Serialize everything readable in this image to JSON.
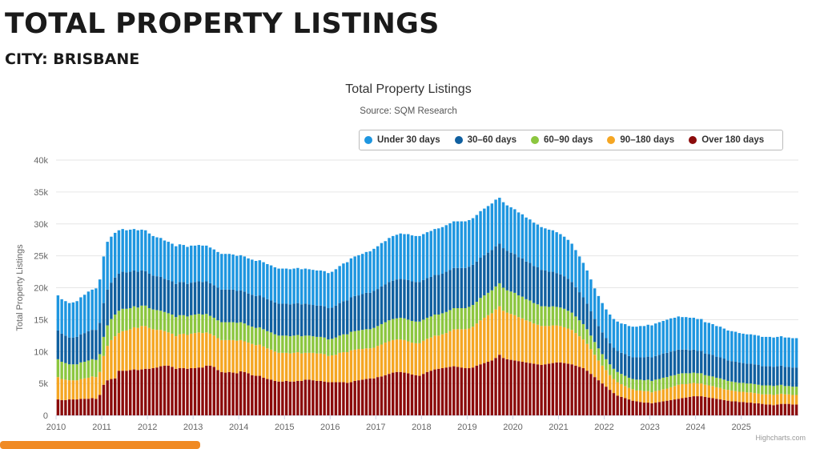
{
  "page": {
    "title": "TOTAL PROPERTY LISTINGS",
    "city": "CITY: BRISBANE"
  },
  "credits": "Highcharts.com",
  "chart_data": {
    "type": "bar",
    "stacked": true,
    "title": "Total Property Listings",
    "subtitle": "Source: SQM Research",
    "ylabel": "Total Property Listings",
    "ylim": [
      0,
      40000
    ],
    "y_ticks": [
      "0",
      "5k",
      "10k",
      "15k",
      "20k",
      "25k",
      "30k",
      "35k",
      "40k"
    ],
    "x_ticks": [
      "2010",
      "2011",
      "2012",
      "2013",
      "2014",
      "2015",
      "2016",
      "2017",
      "2018",
      "2019",
      "2020",
      "2021",
      "2022",
      "2023",
      "2024",
      "2025"
    ],
    "x_start": "2010-01",
    "frequency": "monthly",
    "grid": true,
    "legend_position": "top-right",
    "series": [
      {
        "name": "Over 180 days",
        "color": "#8b0b0b",
        "values": [
          2500,
          2400,
          2400,
          2500,
          2500,
          2500,
          2600,
          2600,
          2600,
          2700,
          2600,
          3200,
          4800,
          5500,
          5700,
          5800,
          7000,
          7000,
          7000,
          7100,
          7200,
          7100,
          7200,
          7300,
          7300,
          7400,
          7500,
          7700,
          7800,
          7800,
          7600,
          7300,
          7400,
          7400,
          7300,
          7400,
          7400,
          7500,
          7500,
          7800,
          7800,
          7600,
          7100,
          6800,
          6700,
          6800,
          6700,
          6600,
          6900,
          6800,
          6600,
          6300,
          6200,
          6200,
          5900,
          5700,
          5600,
          5400,
          5300,
          5300,
          5400,
          5300,
          5300,
          5400,
          5400,
          5600,
          5600,
          5500,
          5400,
          5400,
          5300,
          5200,
          5200,
          5200,
          5200,
          5200,
          5100,
          5200,
          5400,
          5500,
          5600,
          5700,
          5800,
          5800,
          6000,
          6100,
          6300,
          6500,
          6700,
          6800,
          6800,
          6700,
          6600,
          6400,
          6300,
          6200,
          6500,
          6800,
          7000,
          7200,
          7300,
          7400,
          7500,
          7600,
          7700,
          7600,
          7500,
          7400,
          7400,
          7500,
          7800,
          8000,
          8200,
          8400,
          8600,
          9000,
          9500,
          9000,
          8800,
          8700,
          8600,
          8500,
          8400,
          8300,
          8200,
          8100,
          8000,
          7900,
          8000,
          8100,
          8200,
          8300,
          8300,
          8200,
          8100,
          8000,
          7800,
          7600,
          7400,
          7000,
          6500,
          6000,
          5500,
          5000,
          4500,
          4000,
          3500,
          3100,
          2900,
          2700,
          2500,
          2300,
          2200,
          2100,
          2000,
          2000,
          1900,
          2000,
          2100,
          2200,
          2300,
          2400,
          2500,
          2600,
          2700,
          2800,
          2900,
          3000,
          3000,
          3000,
          2900,
          2800,
          2700,
          2600,
          2500,
          2400,
          2300,
          2200,
          2200,
          2100,
          2100,
          2000,
          2000,
          1900,
          1900,
          1800,
          1700,
          1700,
          1600,
          1700,
          1800,
          1800,
          1800,
          1700,
          1700
        ]
      },
      {
        "name": "90–180 days",
        "color": "#f5a623",
        "values": [
          3500,
          3300,
          3200,
          3000,
          3000,
          3000,
          3100,
          3200,
          3300,
          3400,
          3400,
          3600,
          4500,
          5400,
          6100,
          6600,
          5900,
          6200,
          6300,
          6400,
          6600,
          6600,
          6800,
          6700,
          6400,
          6100,
          5900,
          5700,
          5400,
          5200,
          5200,
          5100,
          5300,
          5400,
          5300,
          5400,
          5500,
          5500,
          5400,
          5200,
          5000,
          4900,
          5000,
          5000,
          5100,
          5000,
          5100,
          5100,
          4900,
          4800,
          4800,
          4900,
          4800,
          4900,
          4900,
          4800,
          4700,
          4600,
          4500,
          4500,
          4400,
          4400,
          4500,
          4500,
          4300,
          4200,
          4200,
          4300,
          4300,
          4300,
          4300,
          4100,
          4200,
          4300,
          4600,
          4700,
          4800,
          5000,
          4900,
          4900,
          4800,
          4800,
          4700,
          4800,
          4900,
          5000,
          5100,
          5100,
          5100,
          5100,
          5100,
          5100,
          5000,
          5000,
          5000,
          5100,
          5200,
          5200,
          5200,
          5300,
          5200,
          5300,
          5400,
          5600,
          5800,
          5900,
          6000,
          6100,
          6200,
          6400,
          6600,
          6900,
          7100,
          7300,
          7400,
          7600,
          7600,
          7400,
          7300,
          7200,
          7100,
          6900,
          6800,
          6600,
          6500,
          6300,
          6200,
          6100,
          6000,
          5900,
          5900,
          5800,
          5700,
          5600,
          5500,
          5400,
          5100,
          4800,
          4500,
          4200,
          3900,
          3500,
          3100,
          2800,
          2600,
          2300,
          2200,
          2100,
          2000,
          1900,
          1800,
          1800,
          1700,
          1800,
          1800,
          1800,
          1700,
          1800,
          1800,
          1900,
          1900,
          2000,
          2100,
          2200,
          2200,
          2100,
          2100,
          2100,
          2000,
          2000,
          1900,
          1900,
          1900,
          1800,
          1800,
          1700,
          1700,
          1700,
          1600,
          1600,
          1600,
          1600,
          1600,
          1600,
          1500,
          1500,
          1600,
          1600,
          1600,
          1600,
          1600,
          1500,
          1500,
          1500,
          1500
        ]
      },
      {
        "name": "60–90 days",
        "color": "#8cc63f",
        "values": [
          2800,
          2700,
          2600,
          2500,
          2500,
          2500,
          2600,
          2600,
          2700,
          2700,
          2700,
          2800,
          3000,
          3200,
          3300,
          3400,
          3500,
          3500,
          3400,
          3300,
          3300,
          3200,
          3200,
          3200,
          3100,
          3100,
          3100,
          3000,
          3000,
          3000,
          3000,
          3000,
          3000,
          2900,
          2900,
          2900,
          2900,
          2900,
          2900,
          2900,
          2800,
          2800,
          2800,
          2800,
          2800,
          2800,
          2800,
          2800,
          2800,
          2800,
          2700,
          2700,
          2700,
          2700,
          2700,
          2700,
          2700,
          2700,
          2700,
          2700,
          2700,
          2700,
          2700,
          2700,
          2700,
          2700,
          2700,
          2600,
          2600,
          2600,
          2600,
          2600,
          2600,
          2700,
          2700,
          2800,
          2800,
          2900,
          2900,
          2900,
          3000,
          3000,
          3000,
          3100,
          3100,
          3200,
          3200,
          3300,
          3300,
          3300,
          3400,
          3400,
          3400,
          3400,
          3400,
          3400,
          3300,
          3300,
          3300,
          3300,
          3300,
          3300,
          3300,
          3300,
          3300,
          3300,
          3300,
          3300,
          3400,
          3400,
          3400,
          3500,
          3500,
          3500,
          3600,
          3600,
          3600,
          3600,
          3500,
          3500,
          3500,
          3400,
          3400,
          3300,
          3300,
          3200,
          3200,
          3100,
          3100,
          3000,
          3000,
          2900,
          2900,
          2900,
          2800,
          2700,
          2600,
          2500,
          2400,
          2300,
          2100,
          2000,
          1900,
          1800,
          1700,
          1700,
          1600,
          1600,
          1600,
          1600,
          1600,
          1600,
          1700,
          1700,
          1700,
          1800,
          1800,
          1800,
          1800,
          1800,
          1800,
          1800,
          1700,
          1700,
          1700,
          1700,
          1600,
          1600,
          1600,
          1600,
          1500,
          1500,
          1500,
          1500,
          1500,
          1500,
          1400,
          1400,
          1400,
          1400,
          1400,
          1400,
          1400,
          1400,
          1400,
          1400,
          1400,
          1400,
          1400,
          1400,
          1400,
          1300,
          1300,
          1300,
          1300
        ]
      },
      {
        "name": "30–60 days",
        "color": "#1060a0",
        "values": [
          4500,
          4400,
          4300,
          4200,
          4200,
          4300,
          4400,
          4500,
          4600,
          4600,
          4700,
          4900,
          5300,
          5600,
          5700,
          5800,
          5800,
          5800,
          5700,
          5700,
          5600,
          5600,
          5500,
          5400,
          5400,
          5300,
          5300,
          5300,
          5200,
          5200,
          5200,
          5200,
          5200,
          5200,
          5100,
          5100,
          5100,
          5100,
          5100,
          5100,
          5100,
          5100,
          5100,
          5100,
          5100,
          5100,
          5100,
          5000,
          5000,
          5000,
          5000,
          5000,
          5000,
          5000,
          5000,
          5000,
          5000,
          5000,
          5000,
          5000,
          5000,
          5000,
          5000,
          5000,
          5000,
          5000,
          4900,
          4900,
          4900,
          4900,
          4900,
          4900,
          4900,
          5000,
          5100,
          5200,
          5300,
          5400,
          5500,
          5500,
          5600,
          5700,
          5700,
          5800,
          5800,
          5900,
          5900,
          6000,
          6000,
          6100,
          6100,
          6100,
          6200,
          6200,
          6200,
          6200,
          6200,
          6200,
          6200,
          6200,
          6200,
          6200,
          6300,
          6300,
          6300,
          6300,
          6300,
          6300,
          6300,
          6300,
          6300,
          6300,
          6300,
          6300,
          6300,
          6300,
          6200,
          6200,
          6200,
          6100,
          6100,
          6000,
          6000,
          5900,
          5900,
          5800,
          5800,
          5700,
          5600,
          5500,
          5400,
          5300,
          5200,
          5100,
          5000,
          4800,
          4600,
          4400,
          4200,
          4000,
          3800,
          3600,
          3500,
          3400,
          3300,
          3300,
          3300,
          3300,
          3300,
          3400,
          3400,
          3400,
          3500,
          3500,
          3600,
          3600,
          3700,
          3700,
          3800,
          3800,
          3800,
          3800,
          3800,
          3800,
          3700,
          3700,
          3600,
          3600,
          3500,
          3500,
          3400,
          3400,
          3400,
          3300,
          3300,
          3300,
          3200,
          3200,
          3200,
          3200,
          3100,
          3100,
          3100,
          3100,
          3100,
          3000,
          3000,
          3000,
          3000,
          3000,
          3000,
          3000,
          3000,
          3000,
          3000
        ]
      },
      {
        "name": "Under 30 days",
        "color": "#1e96e0",
        "values": [
          5500,
          5400,
          5400,
          5400,
          5500,
          5600,
          5800,
          6000,
          6200,
          6300,
          6500,
          6800,
          7300,
          7500,
          7200,
          7000,
          6800,
          6700,
          6600,
          6600,
          6500,
          6500,
          6400,
          6400,
          6300,
          6200,
          6100,
          6100,
          6000,
          6000,
          5900,
          5900,
          5900,
          5800,
          5800,
          5800,
          5700,
          5700,
          5700,
          5600,
          5600,
          5600,
          5600,
          5600,
          5600,
          5600,
          5500,
          5500,
          5500,
          5500,
          5500,
          5500,
          5500,
          5500,
          5500,
          5500,
          5500,
          5500,
          5500,
          5500,
          5500,
          5500,
          5500,
          5500,
          5500,
          5500,
          5500,
          5500,
          5500,
          5500,
          5500,
          5500,
          5600,
          5700,
          5800,
          5900,
          6000,
          6100,
          6200,
          6300,
          6300,
          6400,
          6500,
          6600,
          6700,
          6800,
          6800,
          6900,
          7000,
          7000,
          7100,
          7100,
          7200,
          7200,
          7200,
          7200,
          7200,
          7200,
          7200,
          7200,
          7300,
          7300,
          7300,
          7300,
          7300,
          7300,
          7300,
          7300,
          7300,
          7300,
          7300,
          7300,
          7300,
          7300,
          7300,
          7300,
          7200,
          7200,
          7100,
          7100,
          7000,
          7000,
          6900,
          6900,
          6800,
          6800,
          6700,
          6700,
          6600,
          6600,
          6500,
          6400,
          6300,
          6200,
          6100,
          6000,
          5800,
          5600,
          5400,
          5200,
          5000,
          4800,
          4700,
          4600,
          4500,
          4500,
          4500,
          4600,
          4600,
          4700,
          4700,
          4800,
          4800,
          4900,
          4900,
          5000,
          5000,
          5100,
          5100,
          5100,
          5200,
          5200,
          5200,
          5200,
          5100,
          5100,
          5100,
          5000,
          5000,
          5000,
          4900,
          4900,
          4800,
          4800,
          4800,
          4700,
          4700,
          4700,
          4700,
          4600,
          4600,
          4600,
          4600,
          4600,
          4600,
          4600,
          4600,
          4600,
          4600,
          4600,
          4600,
          4600,
          4600,
          4600,
          4600
        ]
      }
    ]
  }
}
